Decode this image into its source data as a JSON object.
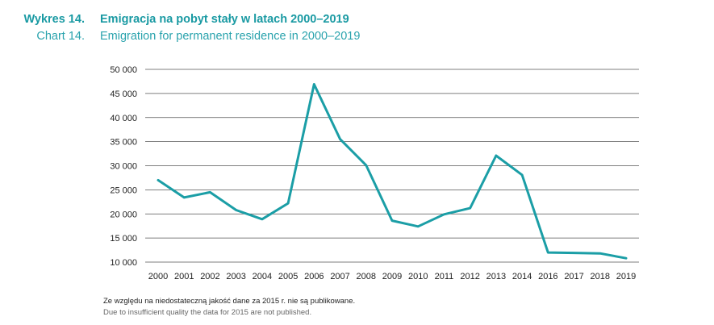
{
  "header": {
    "pl_number": "Wykres 14.",
    "pl_title": "Emigracja na pobyt stały w latach 2000–2019",
    "en_number": "Chart 14.",
    "en_title": "Emigration for permanent residence in 2000–2019"
  },
  "footnote": {
    "pl": "Ze względu na niedostateczną jakość dane za 2015 r. nie są publikowane.",
    "en": "Due to insufficient quality the data for 2015 are not published."
  },
  "colors": {
    "line": "#1b9ea6",
    "title": "#1a9aa3",
    "grid": "#555555"
  },
  "chart_data": {
    "type": "line",
    "title": "Emigracja na pobyt stały w latach 2000–2019",
    "xlabel": "",
    "ylabel": "",
    "ylim": [
      10000,
      50000
    ],
    "yticks": [
      10000,
      15000,
      20000,
      25000,
      30000,
      35000,
      40000,
      45000,
      50000
    ],
    "ytick_labels": [
      "10 000",
      "15 000",
      "20 000",
      "25 000",
      "30 000",
      "35 000",
      "40 000",
      "45 000",
      "50 000"
    ],
    "categories": [
      "2000",
      "2001",
      "2002",
      "2003",
      "2004",
      "2005",
      "2006",
      "2007",
      "2008",
      "2009",
      "2010",
      "2011",
      "2012",
      "2013",
      "2014",
      "2016",
      "2017",
      "2018",
      "2019"
    ],
    "series": [
      {
        "name": "Emigracja",
        "values": [
          27000,
          23400,
          24500,
          20800,
          18900,
          22200,
          46900,
          35500,
          30100,
          18600,
          17400,
          19900,
          21200,
          32100,
          28100,
          12000,
          11900,
          11800,
          10800
        ]
      }
    ],
    "grid": true,
    "legend": "none"
  }
}
